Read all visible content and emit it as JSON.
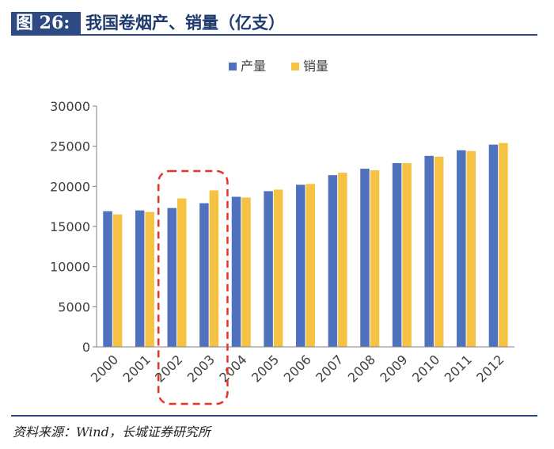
{
  "header": {
    "figure_label": "图 26:",
    "title": "我国卷烟产、销量（亿支）"
  },
  "footer": {
    "source": "资料来源：Wind，长城证券研究所"
  },
  "colors": {
    "series_production": "#4f71be",
    "series_sales": "#f6c243",
    "axis": "#7f7f7f",
    "highlight": "#e8332a",
    "title_bar": "#2e4a82"
  },
  "chart_data": {
    "type": "bar",
    "title": "",
    "xlabel": "",
    "ylabel": "",
    "ylim": [
      0,
      30000
    ],
    "yticks": [
      0,
      5000,
      10000,
      15000,
      20000,
      25000,
      30000
    ],
    "ytick_labels": [
      "0",
      "5000",
      "10000",
      "15000",
      "20000",
      "25000",
      "30000"
    ],
    "categories": [
      "2000",
      "2001",
      "2002",
      "2003",
      "2004",
      "2005",
      "2006",
      "2007",
      "2008",
      "2009",
      "2010",
      "2011",
      "2012"
    ],
    "series": [
      {
        "name": "产量",
        "color": "#4f71be",
        "values": [
          16900,
          17000,
          17300,
          17900,
          18700,
          19400,
          20200,
          21400,
          22200,
          22900,
          23800,
          24500,
          25200
        ]
      },
      {
        "name": "销量",
        "color": "#f6c243",
        "values": [
          16500,
          16800,
          18500,
          19500,
          18600,
          19600,
          20300,
          21700,
          22000,
          22900,
          23700,
          24400,
          25400
        ]
      }
    ],
    "legend_position": "top-center",
    "grid": false,
    "annotation": {
      "type": "dashed-box",
      "categories": [
        "2002",
        "2003"
      ],
      "color": "#e8332a"
    }
  }
}
